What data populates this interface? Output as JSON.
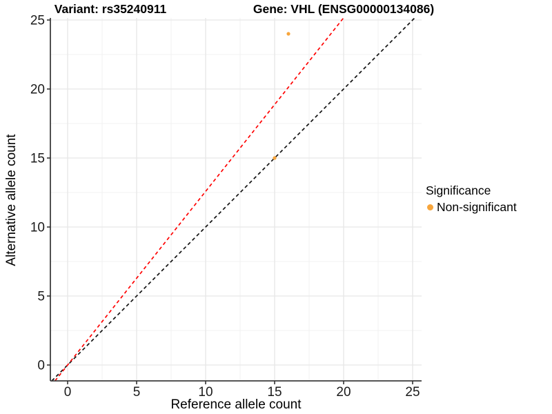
{
  "chart": {
    "title_left": "Variant: rs35240911",
    "title_right": "Gene: VHL (ENSG00000134086)",
    "xlabel": "Reference allele count",
    "ylabel": "Alternative allele count",
    "legend": {
      "title": "Significance",
      "items": [
        {
          "label": "Non-significant",
          "color": "#F7A53C"
        }
      ]
    }
  },
  "chart_data": {
    "type": "scatter",
    "title_left": "Variant: rs35240911",
    "title_right": "Gene: VHL (ENSG00000134086)",
    "xlabel": "Reference allele count",
    "ylabel": "Alternative allele count",
    "xlim": [
      -1.25,
      25.65
    ],
    "ylim": [
      -1.15,
      25.15
    ],
    "x_ticks": [
      0,
      5,
      10,
      15,
      20,
      25
    ],
    "y_ticks": [
      0,
      5,
      10,
      15,
      20,
      25
    ],
    "minor_ticks": [
      2.5,
      7.5,
      12.5,
      17.5,
      22.5
    ],
    "grid": true,
    "legend_position": "right",
    "points": [
      {
        "x": 15,
        "y": 15,
        "significance": "Non-significant"
      },
      {
        "x": 16,
        "y": 24,
        "significance": "Non-significant"
      }
    ],
    "point_color": "#F7A53C",
    "point_radius": 2.6,
    "lines": [
      {
        "name": "identity-line",
        "slope": 1.0,
        "intercept": 0,
        "color": "#111111",
        "style": "dashed"
      },
      {
        "name": "allelic-ratio-line",
        "slope": 1.2581,
        "intercept": 0,
        "color": "#FF0000",
        "style": "dashed"
      }
    ],
    "colors": {
      "major_grid": "#E6E6E6",
      "minor_grid": "#F0F0F0",
      "axis_line": "#3C3C3C",
      "tick_mark": "#333333",
      "tick_label": "#1A1A1A"
    }
  }
}
